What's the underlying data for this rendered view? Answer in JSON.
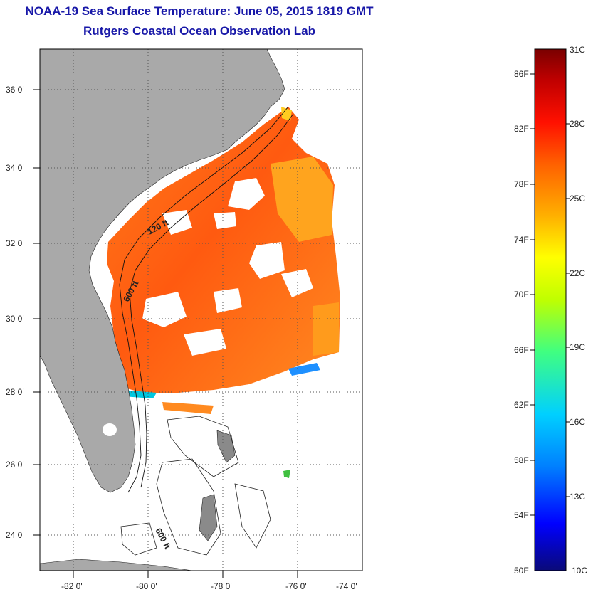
{
  "header": {
    "title": "NOAA-19 Sea Surface Temperature:  June 05, 2015 1819 GMT",
    "subtitle": "Rutgers Coastal Ocean Observation Lab"
  },
  "map": {
    "lat_labels": [
      "36 0'",
      "34 0'",
      "32 0'",
      "30 0'",
      "28 0'",
      "26 0'",
      "24 0'"
    ],
    "lon_labels": [
      "-82 0'",
      "-80 0'",
      "-78 0'",
      "-76 0'",
      "-74 0'"
    ],
    "contour_labels": [
      "120 ft",
      "600 ft",
      "600 ft"
    ],
    "colors": {
      "land": "#a9a9a9",
      "ocean": "#ffffff",
      "grid": "#555555"
    }
  },
  "colorbar": {
    "fahrenheit_labels": [
      "86F",
      "82F",
      "78F",
      "74F",
      "70F",
      "66F",
      "62F",
      "58F",
      "54F",
      "50F"
    ],
    "celsius_labels": [
      "31C",
      "28C",
      "25C",
      "22C",
      "19C",
      "16C",
      "13C",
      "10C"
    ],
    "range_f": [
      50,
      88
    ],
    "colors": [
      "#0a0a78",
      "#0000ff",
      "#0080ff",
      "#00d0ff",
      "#40ff80",
      "#c0ff00",
      "#ffff00",
      "#ffb000",
      "#ff6000",
      "#ff1000",
      "#c00000",
      "#7a0000"
    ]
  }
}
